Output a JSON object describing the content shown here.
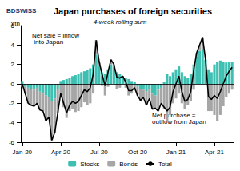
{
  "chart_data": {
    "type": "bar",
    "title": "Japan purchases of foreign securities",
    "subtitle": "4-week rolling sum",
    "ylabel": "Ytn",
    "logo": "BDSWISS",
    "annotations": [
      "Net sale = inflow into Japan",
      "Net purchase = outflow from Japan"
    ],
    "categories": [
      "Jan-20",
      null,
      null,
      null,
      null,
      null,
      null,
      null,
      null,
      null,
      null,
      null,
      null,
      "Apr-20",
      null,
      null,
      null,
      null,
      null,
      null,
      null,
      null,
      null,
      null,
      null,
      null,
      "Jul-20",
      null,
      null,
      null,
      null,
      null,
      null,
      null,
      null,
      null,
      null,
      null,
      null,
      "Oct-20",
      null,
      null,
      null,
      null,
      null,
      null,
      null,
      null,
      null,
      null,
      null,
      null,
      "Jan-21",
      null,
      null,
      null,
      null,
      null,
      null,
      null,
      null,
      null,
      null,
      null,
      null,
      "Apr-21",
      null,
      null,
      null,
      null,
      null,
      null
    ],
    "series": [
      {
        "name": "Stocks",
        "type": "bar",
        "color": "#3dbfb2",
        "values": [
          0.3,
          -0.3,
          -0.4,
          -0.5,
          -0.6,
          -0.4,
          -0.8,
          -1.0,
          -1.2,
          -1.4,
          -1.8,
          -1.5,
          -0.5,
          0.3,
          0.4,
          0.5,
          0.6,
          0.8,
          0.9,
          1.0,
          1.2,
          1.3,
          1.4,
          1.6,
          2.0,
          3.0,
          1.8,
          1.2,
          1.0,
          1.5,
          2.0,
          1.8,
          1.2,
          1.0,
          0.8,
          0.6,
          0.5,
          0.3,
          0.2,
          -0.3,
          -0.5,
          -0.6,
          -0.8,
          -0.5,
          -1.0,
          -1.2,
          -0.6,
          -0.4,
          0.2,
          1.0,
          0.8,
          1.2,
          1.5,
          1.8,
          1.2,
          0.8,
          0.6,
          1.0,
          2.0,
          2.8,
          3.4,
          3.6,
          2.5,
          1.5,
          1.2,
          2.0,
          2.3,
          2.4,
          2.3,
          2.2,
          2.3,
          2.3
        ]
      },
      {
        "name": "Bonds",
        "type": "bar",
        "color": "#a6a6a6",
        "values": [
          -0.3,
          -0.7,
          -1.6,
          -1.7,
          -1.7,
          -1.6,
          -1.9,
          -1.8,
          -2.6,
          -2.0,
          -4.0,
          -3.5,
          -2.5,
          -1.3,
          -2.4,
          -3.5,
          -2.8,
          -2.6,
          -2.9,
          -2.8,
          -2.4,
          -1.9,
          -2.2,
          -2.0,
          -1.0,
          1.5,
          0.5,
          -0.2,
          -1.2,
          -0.3,
          0.5,
          0.2,
          -0.5,
          -0.4,
          0.0,
          -0.4,
          -1.2,
          -1.0,
          -0.6,
          -0.9,
          -1.2,
          -0.8,
          -1.4,
          -1.0,
          -1.6,
          -1.3,
          -2.2,
          -1.6,
          -2.6,
          -3.8,
          -3.2,
          -2.0,
          -1.5,
          -1.0,
          -2.0,
          -2.6,
          -2.2,
          -1.8,
          -0.6,
          0.4,
          0.6,
          1.2,
          0.0,
          -2.8,
          -2.8,
          -3.2,
          -3.8,
          -3.2,
          -2.3,
          -1.4,
          -1.0,
          -0.6
        ]
      },
      {
        "name": "Total",
        "type": "line",
        "color": "#000000",
        "values": [
          0.0,
          -1.0,
          -2.0,
          -2.2,
          -2.3,
          -2.0,
          -2.7,
          -2.8,
          -3.8,
          -3.4,
          -5.8,
          -5.0,
          -3.0,
          -1.0,
          -2.0,
          -3.0,
          -2.2,
          -1.8,
          -2.0,
          -1.8,
          -1.2,
          -0.6,
          -0.8,
          -0.4,
          1.0,
          4.5,
          2.3,
          1.0,
          -0.2,
          1.2,
          2.5,
          2.0,
          0.7,
          0.6,
          0.8,
          0.2,
          -0.7,
          -0.7,
          -0.4,
          -1.2,
          -1.7,
          -1.4,
          -2.2,
          -1.5,
          -2.6,
          -2.5,
          -2.8,
          -2.0,
          -2.4,
          -2.8,
          -2.4,
          -0.8,
          0.0,
          0.8,
          -0.8,
          -1.8,
          -1.6,
          -0.8,
          1.4,
          3.2,
          4.0,
          4.8,
          2.5,
          -1.3,
          -1.6,
          -1.2,
          -1.5,
          -0.8,
          0.0,
          0.8,
          1.3,
          1.7
        ]
      }
    ],
    "stacked": true,
    "ylim": [
      -6,
      6
    ],
    "yticks": [
      -6,
      -4,
      -2,
      0,
      2,
      4,
      6
    ],
    "grid": false,
    "legend": "bottom"
  }
}
